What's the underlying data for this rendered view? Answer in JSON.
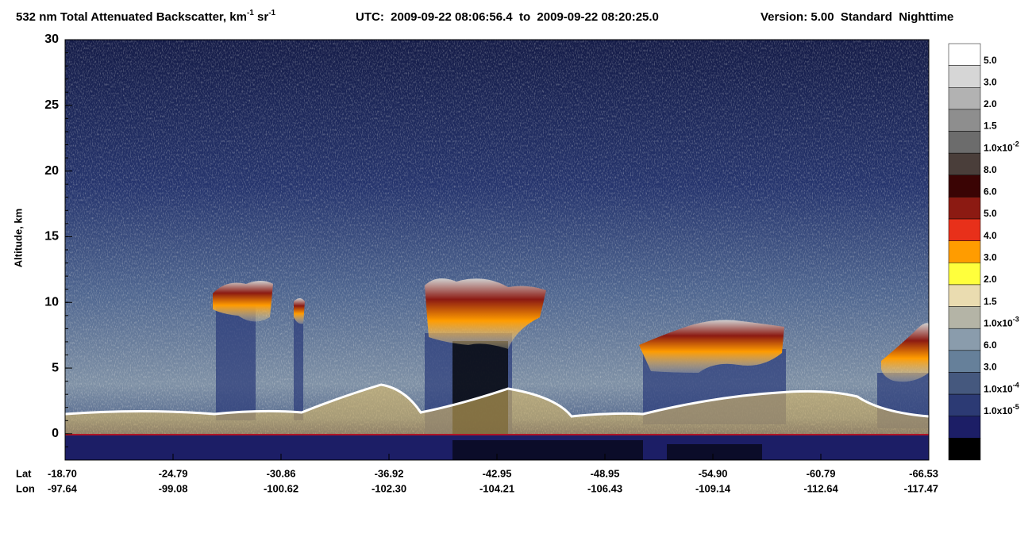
{
  "chart_data": {
    "type": "curtain",
    "title_parts": [
      "532 nm Total Attenuated Backscatter, km",
      "-1",
      " sr",
      "-1"
    ],
    "utc": "UTC:  2009-09-22 08:06:56.4  to  2009-09-22 08:20:25.0",
    "version": "Version: 5.00  Standard  Nighttime",
    "y_label": "Altitude, km",
    "ylim": [
      -2,
      30
    ],
    "yticks": [
      0,
      5,
      10,
      15,
      20,
      25,
      30
    ],
    "x_row_labels": [
      "Lat",
      "Lon"
    ],
    "lat": [
      "-18.70",
      "-24.79",
      "-30.86",
      "-36.92",
      "-42.95",
      "-48.95",
      "-54.90",
      "-60.79",
      "-66.53"
    ],
    "lon": [
      "-97.64",
      "-99.08",
      "-100.62",
      "-102.30",
      "-104.21",
      "-106.43",
      "-109.14",
      "-112.64",
      "-117.47"
    ],
    "colorbar": {
      "colors": [
        "#ffffff",
        "#d6d6d6",
        "#b2b2b2",
        "#8e8e8e",
        "#6c6c6c",
        "#4a3e3a",
        "#3a0404",
        "#8c1a12",
        "#e8301a",
        "#ff9c00",
        "#ffff3c",
        "#eadcb0",
        "#b4b4a6",
        "#8a9cac",
        "#66809a",
        "#45587e",
        "#2c3a74",
        "#1c1e66",
        "#000000"
      ],
      "labels": [
        {
          "text": "5.0"
        },
        {
          "text": "3.0"
        },
        {
          "text": "2.0"
        },
        {
          "text": "1.5"
        },
        {
          "text": "1.0x10",
          "sup": "-2"
        },
        {
          "text": "8.0"
        },
        {
          "text": "6.0"
        },
        {
          "text": "5.0"
        },
        {
          "text": "4.0"
        },
        {
          "text": "3.0"
        },
        {
          "text": "2.0"
        },
        {
          "text": "1.5"
        },
        {
          "text": "1.0x10",
          "sup": "-3"
        },
        {
          "text": "6.0"
        },
        {
          "text": "3.0"
        },
        {
          "text": "1.0x10",
          "sup": "-4"
        },
        {
          "text": "1.0x10",
          "sup": "-5"
        }
      ]
    }
  }
}
